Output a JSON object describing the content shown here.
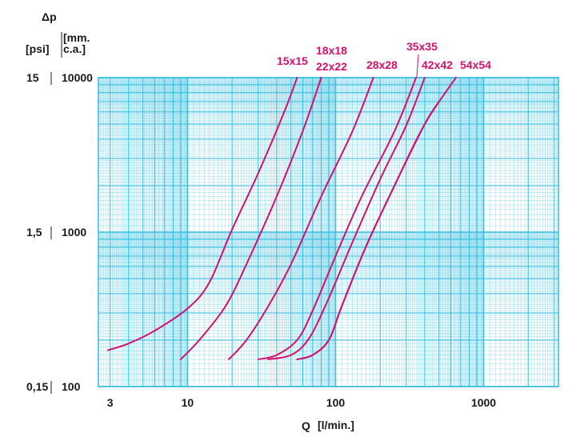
{
  "chart_data": {
    "type": "line",
    "title": "",
    "y_title": "Δp",
    "y_unit_labels": [
      "[psi]",
      "[mm.",
      "c.a.]"
    ],
    "xlabel": "Q",
    "xlabel_unit": "[l/min.]",
    "x_scale": "log",
    "y_scale": "log",
    "xlim": [
      2.5,
      3200
    ],
    "ylim_mm_ca": [
      100,
      10000
    ],
    "x_ticks": [
      "3",
      "10",
      "100",
      "1000"
    ],
    "y_ticks_psi": [
      "15",
      "1,5",
      "0,15"
    ],
    "y_ticks_mm": [
      "10000",
      "1000",
      "100"
    ],
    "grid": true,
    "colors": {
      "grid": "#3cc0e0",
      "series": "#d4106e",
      "text": "#1a1a1a"
    },
    "series": [
      {
        "name": "15x15",
        "points": [
          [
            2.9,
            172
          ],
          [
            4,
            190
          ],
          [
            6,
            230
          ],
          [
            10,
            320
          ],
          [
            14,
            470
          ],
          [
            20,
            1040
          ],
          [
            30,
            2400
          ],
          [
            45,
            6000
          ],
          [
            55,
            10000
          ]
        ]
      },
      {
        "name": "18x18",
        "points": [
          [
            9,
            150
          ],
          [
            12,
            200
          ],
          [
            18,
            330
          ],
          [
            25,
            620
          ],
          [
            40,
            1700
          ],
          [
            60,
            4500
          ],
          [
            80,
            10000
          ]
        ]
      },
      {
        "name": "22x22",
        "points": [
          [
            19,
            150
          ],
          [
            25,
            200
          ],
          [
            35,
            330
          ],
          [
            50,
            620
          ],
          [
            80,
            1700
          ],
          [
            130,
            4500
          ],
          [
            180,
            10000
          ]
        ]
      },
      {
        "name": "28x28",
        "points": [
          [
            30,
            150
          ],
          [
            40,
            160
          ],
          [
            55,
            200
          ],
          [
            70,
            310
          ],
          [
            100,
            700
          ],
          [
            150,
            1700
          ],
          [
            250,
            4500
          ],
          [
            350,
            10000
          ]
        ]
      },
      {
        "name": "35x35",
        "points": [
          [
            35,
            150
          ],
          [
            50,
            160
          ],
          [
            65,
            200
          ],
          [
            85,
            330
          ],
          [
            130,
            860
          ],
          [
            200,
            2200
          ],
          [
            300,
            4900
          ],
          [
            400,
            10000
          ]
        ]
      },
      {
        "name": "42x42",
        "points": [
          [
            55,
            150
          ],
          [
            70,
            160
          ],
          [
            90,
            200
          ],
          [
            110,
            330
          ],
          [
            160,
            800
          ],
          [
            250,
            2000
          ],
          [
            400,
            5000
          ],
          [
            500,
            7000
          ]
        ]
      },
      {
        "name": "54x54",
        "points": [
          [
            55,
            150
          ],
          [
            70,
            160
          ],
          [
            90,
            200
          ],
          [
            110,
            330
          ],
          [
            160,
            800
          ],
          [
            250,
            2000
          ],
          [
            400,
            5000
          ],
          [
            650,
            10000
          ]
        ]
      }
    ]
  }
}
